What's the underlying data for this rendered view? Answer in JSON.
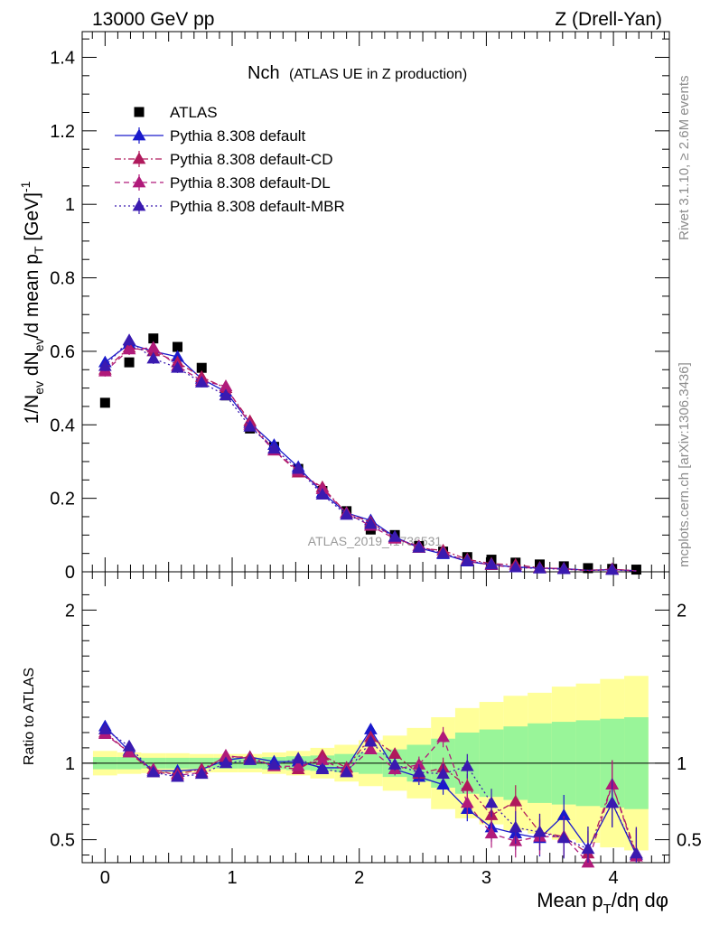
{
  "header": {
    "left": "13000 GeV pp",
    "right": "Z (Drell-Yan)"
  },
  "plot_title": {
    "main": "Nch",
    "sub": "(ATLAS UE in Z production)"
  },
  "side_labels": {
    "rivet": "Rivet 3.1.10, ≥ 2.6M events",
    "mcplots": "mcplots.cern.ch [arXiv:1306.3436]"
  },
  "watermark": "ATLAS_2019_I1736531",
  "colors": {
    "atlas": "#000000",
    "default": "#1a1acc",
    "cd": "#b01a5c",
    "dl": "#b01a7a",
    "mbr": "#3a1ab0",
    "band_inner": "#99f599",
    "band_outer": "#ffff99"
  },
  "chart_data": [
    {
      "type": "scatter",
      "panel": "main",
      "ylabel": "1/N_ev dN_ev/d mean p_T [GeV]^-1",
      "xlim": [
        -0.18,
        4.44
      ],
      "ylim": [
        0,
        1.47
      ],
      "yticks": [
        0,
        0.2,
        0.4,
        0.6,
        0.8,
        1,
        1.2,
        1.4
      ],
      "ytick_labels": [
        "0",
        "0.2",
        "0.4",
        "0.6",
        "0.8",
        "1",
        "1.2",
        "1.4"
      ],
      "x": [
        0.0,
        0.19,
        0.38,
        0.57,
        0.76,
        0.95,
        1.14,
        1.33,
        1.52,
        1.71,
        1.9,
        2.09,
        2.28,
        2.47,
        2.66,
        2.85,
        3.04,
        3.23,
        3.42,
        3.61,
        3.8,
        3.99,
        4.18
      ],
      "legend": [
        {
          "label": "ATLAS",
          "marker": "square",
          "line": "none",
          "color_key": "atlas"
        },
        {
          "label": "Pythia 8.308 default",
          "marker": "triangle",
          "line": "solid",
          "color_key": "default"
        },
        {
          "label": "Pythia 8.308 default-CD",
          "marker": "triangle",
          "line": "dashdot",
          "color_key": "cd"
        },
        {
          "label": "Pythia 8.308 default-DL",
          "marker": "triangle",
          "line": "dashed",
          "color_key": "dl"
        },
        {
          "label": "Pythia 8.308 default-MBR",
          "marker": "triangle",
          "line": "dotted",
          "color_key": "mbr"
        }
      ],
      "series": [
        {
          "name": "ATLAS",
          "values": [
            0.46,
            0.57,
            0.635,
            0.612,
            0.555,
            0.48,
            0.39,
            0.34,
            0.28,
            0.22,
            0.165,
            0.115,
            0.1,
            0.07,
            0.055,
            0.04,
            0.033,
            0.025,
            0.02,
            0.015,
            0.01,
            0.008,
            0.006
          ]
        },
        {
          "name": "Pythia 8.308 default",
          "values": [
            0.57,
            0.62,
            0.6,
            0.585,
            0.525,
            0.49,
            0.405,
            0.345,
            0.285,
            0.215,
            0.16,
            0.14,
            0.095,
            0.065,
            0.048,
            0.028,
            0.019,
            0.013,
            0.01,
            0.009,
            0.004,
            0.006,
            0.003
          ]
        },
        {
          "name": "Pythia 8.308 default-CD",
          "values": [
            0.55,
            0.61,
            0.6,
            0.57,
            0.53,
            0.5,
            0.41,
            0.33,
            0.27,
            0.23,
            0.16,
            0.135,
            0.093,
            0.065,
            0.058,
            0.034,
            0.022,
            0.019,
            0.011,
            0.008,
            0.004,
            0.007,
            0.003
          ]
        },
        {
          "name": "Pythia 8.308 default-DL",
          "values": [
            0.545,
            0.605,
            0.61,
            0.56,
            0.52,
            0.505,
            0.4,
            0.33,
            0.275,
            0.225,
            0.16,
            0.125,
            0.09,
            0.07,
            0.05,
            0.03,
            0.018,
            0.012,
            0.01,
            0.008,
            0.003,
            0.007,
            0.002
          ]
        },
        {
          "name": "Pythia 8.308 default-MBR",
          "values": [
            0.56,
            0.63,
            0.58,
            0.555,
            0.515,
            0.48,
            0.395,
            0.335,
            0.28,
            0.21,
            0.155,
            0.13,
            0.095,
            0.066,
            0.05,
            0.03,
            0.02,
            0.012,
            0.009,
            0.007,
            0.004,
            0.005,
            0.002
          ]
        }
      ]
    },
    {
      "type": "line",
      "panel": "ratio",
      "ylabel": "Ratio to ATLAS",
      "xlabel": "Mean p_T/dη dφ",
      "xlim": [
        -0.18,
        4.44
      ],
      "ylim": [
        0.35,
        2.25
      ],
      "yticks": [
        0.5,
        1,
        2
      ],
      "ytick_labels": [
        "0.5",
        "1",
        "2"
      ],
      "xticks": [
        0,
        1,
        2,
        3,
        4
      ],
      "xtick_labels": [
        "0",
        "1",
        "2",
        "3",
        "4"
      ],
      "x": [
        0.0,
        0.19,
        0.38,
        0.57,
        0.76,
        0.95,
        1.14,
        1.33,
        1.52,
        1.71,
        1.9,
        2.09,
        2.28,
        2.47,
        2.66,
        2.85,
        3.04,
        3.23,
        3.42,
        3.61,
        3.8,
        3.99,
        4.18
      ],
      "band_inner": [
        0.04,
        0.04,
        0.035,
        0.035,
        0.035,
        0.035,
        0.035,
        0.04,
        0.045,
        0.05,
        0.06,
        0.07,
        0.09,
        0.12,
        0.16,
        0.2,
        0.22,
        0.24,
        0.26,
        0.27,
        0.28,
        0.29,
        0.3
      ],
      "band_outer": [
        0.08,
        0.07,
        0.065,
        0.065,
        0.06,
        0.06,
        0.06,
        0.07,
        0.08,
        0.1,
        0.12,
        0.15,
        0.18,
        0.23,
        0.3,
        0.36,
        0.4,
        0.44,
        0.46,
        0.5,
        0.52,
        0.55,
        0.57
      ],
      "series": [
        {
          "name": "Pythia 8.308 default",
          "values": [
            1.24,
            1.08,
            0.95,
            0.95,
            0.96,
            1.02,
            1.04,
            1.01,
            1.01,
            0.97,
            0.97,
            1.22,
            0.96,
            0.91,
            0.86,
            0.7,
            0.58,
            0.54,
            0.51,
            0.66,
            0.44,
            0.74,
            0.4
          ]
        },
        {
          "name": "Pythia 8.308 default-CD",
          "values": [
            1.2,
            1.07,
            0.94,
            0.93,
            0.96,
            1.04,
            1.04,
            0.98,
            0.96,
            1.05,
            0.97,
            1.17,
            1.06,
            0.93,
            0.97,
            0.85,
            0.66,
            0.75,
            0.55,
            0.52,
            0.41,
            0.86,
            0.41
          ]
        },
        {
          "name": "Pythia 8.308 default-DL",
          "values": [
            1.19,
            1.07,
            0.96,
            0.92,
            0.94,
            1.05,
            1.03,
            0.98,
            0.98,
            1.02,
            0.95,
            1.09,
            0.96,
            0.99,
            1.17,
            0.74,
            0.54,
            0.49,
            0.52,
            0.52,
            0.35,
            0.86,
            0.39
          ]
        },
        {
          "name": "Pythia 8.308 default-MBR",
          "values": [
            1.22,
            1.11,
            0.94,
            0.91,
            0.93,
            1.0,
            1.02,
            0.99,
            1.03,
            0.96,
            0.94,
            1.14,
            0.99,
            0.94,
            0.93,
            0.98,
            0.74,
            0.58,
            0.55,
            0.51,
            0.44,
            0.74,
            0.41
          ]
        }
      ]
    }
  ]
}
